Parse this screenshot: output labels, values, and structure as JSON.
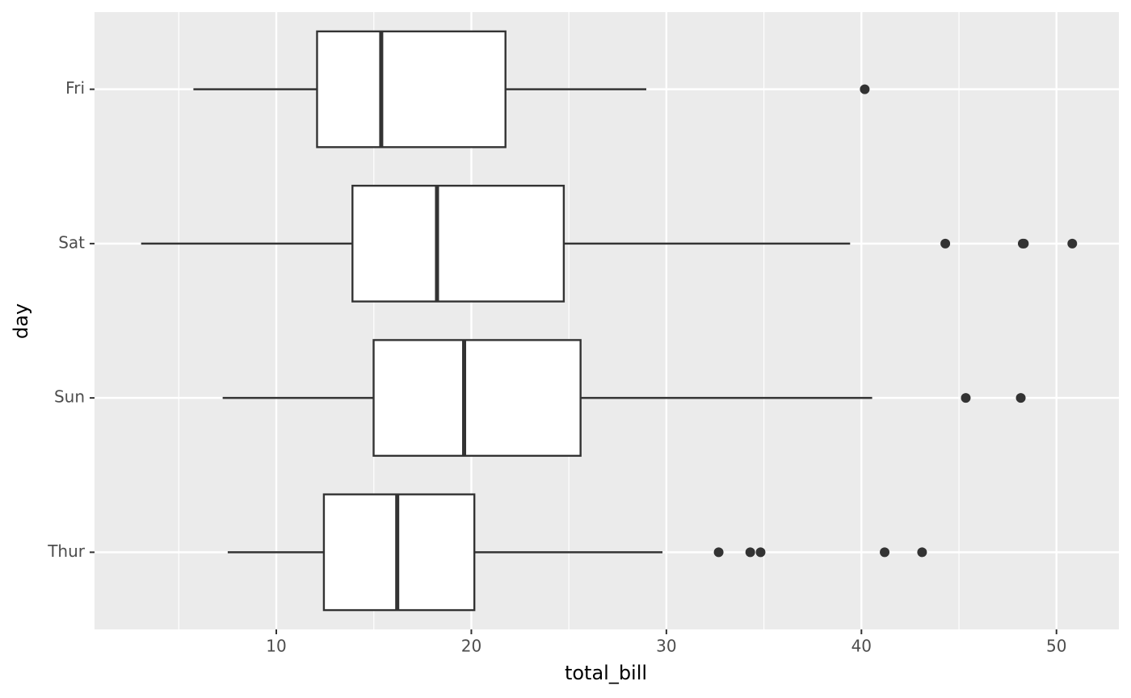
{
  "chart_data": {
    "type": "boxplot",
    "orientation": "horizontal",
    "x_label": "total_bill",
    "y_label": "day",
    "categories": [
      "Fri",
      "Sat",
      "Sun",
      "Thur"
    ],
    "boxes": [
      {
        "whisker_low": 5.75,
        "q1": 12.09,
        "median": 15.38,
        "q3": 21.75,
        "whisker_high": 28.97,
        "outliers": [
          40.17
        ]
      },
      {
        "whisker_low": 3.07,
        "q1": 13.905,
        "median": 18.24,
        "q3": 24.74,
        "whisker_high": 39.42,
        "outliers": [
          44.3,
          48.27,
          48.33,
          50.81
        ]
      },
      {
        "whisker_low": 7.25,
        "q1": 14.99,
        "median": 19.63,
        "q3": 25.6,
        "whisker_high": 40.55,
        "outliers": [
          45.35,
          48.17
        ]
      },
      {
        "whisker_low": 7.51,
        "q1": 12.44,
        "median": 16.2,
        "q3": 20.155,
        "whisker_high": 29.8,
        "outliers": [
          32.68,
          34.3,
          34.83,
          41.19,
          43.11
        ]
      }
    ],
    "box_fill": "#ffffff",
    "box_stroke": "#333333",
    "panel_color": "#ebebeb",
    "xlim": [
      0.68,
      53.2
    ],
    "xticks": [
      10,
      20,
      30,
      40,
      50
    ],
    "xminor": [
      5,
      15,
      25,
      35,
      45
    ],
    "grid": true
  }
}
